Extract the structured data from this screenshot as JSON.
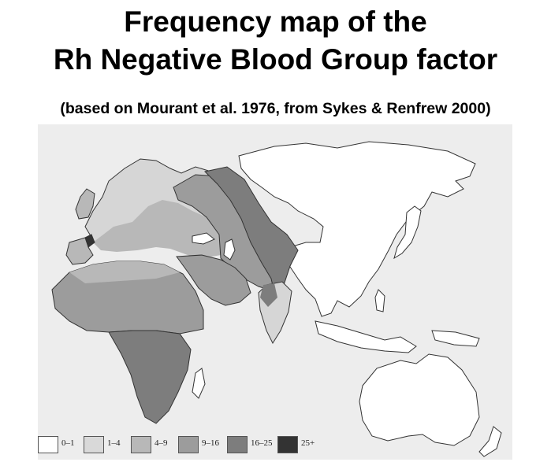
{
  "title": {
    "line1": "Frequency map of the",
    "line2": "Rh Negative Blood Group factor"
  },
  "subtitle": "(based on Mourant et al. 1976,  from Sykes & Renfrew 2000)",
  "map": {
    "regions": [
      "Europe",
      "Africa",
      "Middle East",
      "Central Asia",
      "South Asia",
      "East Asia",
      "Australia"
    ],
    "legend": [
      {
        "label": "0–1",
        "color": "#ffffff"
      },
      {
        "label": "1–4",
        "color": "#d9d9d9"
      },
      {
        "label": "4–9",
        "color": "#b8b8b8"
      },
      {
        "label": "9–16",
        "color": "#9c9c9c"
      },
      {
        "label": "16–25",
        "color": "#7d7d7d"
      },
      {
        "label": "25+",
        "color": "#333333"
      }
    ]
  }
}
